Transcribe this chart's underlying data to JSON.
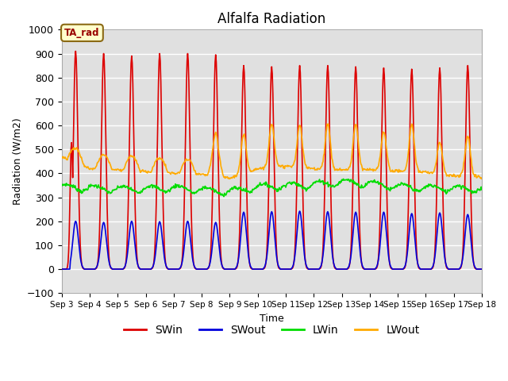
{
  "title": "Alfalfa Radiation",
  "xlabel": "Time",
  "ylabel": "Radiation (W/m2)",
  "ylim": [
    -100,
    1000
  ],
  "xlim_days": [
    3,
    18
  ],
  "background_color": "#e0e0e0",
  "grid_color": "white",
  "annotation_text": "TA_rad",
  "annotation_bg": "#ffffcc",
  "annotation_border": "#8b6914",
  "series": {
    "SWin": {
      "color": "#dd0000",
      "lw": 1.2
    },
    "SWout": {
      "color": "#0000dd",
      "lw": 1.2
    },
    "LWin": {
      "color": "#00dd00",
      "lw": 1.2
    },
    "LWout": {
      "color": "#ffaa00",
      "lw": 1.2
    }
  },
  "legend_colors": {
    "SWin": "#dd0000",
    "SWout": "#0000dd",
    "LWin": "#00dd00",
    "LWout": "#ffaa00"
  },
  "tick_labels": [
    "Sep 3",
    "Sep 4",
    "Sep 5",
    "Sep 6",
    "Sep 7",
    "Sep 8",
    "Sep 9",
    "Sep 10",
    "Sep 11",
    "Sep 12",
    "Sep 13",
    "Sep 14",
    "Sep 15",
    "Sep 16",
    "Sep 17",
    "Sep 18"
  ],
  "tick_positions": [
    3,
    4,
    5,
    6,
    7,
    8,
    9,
    10,
    11,
    12,
    13,
    14,
    15,
    16,
    17,
    18
  ]
}
